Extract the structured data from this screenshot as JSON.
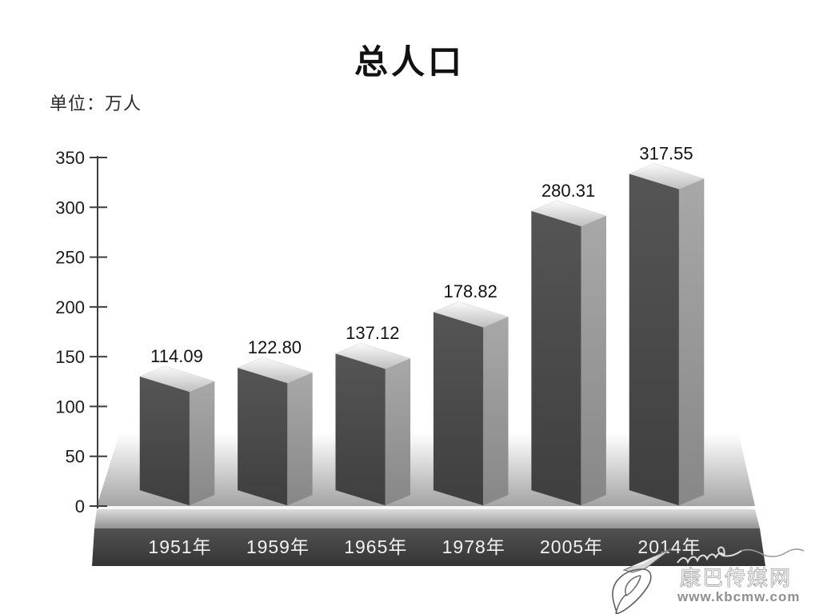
{
  "chart_data": {
    "type": "bar",
    "style": "3d-grayscale",
    "title": "总人口",
    "unit_label": "单位：万人",
    "categories": [
      "1951年",
      "1959年",
      "1965年",
      "1978年",
      "2005年",
      "2014年"
    ],
    "values": [
      114.09,
      122.8,
      137.12,
      178.82,
      280.31,
      317.55
    ],
    "xlabel": "",
    "ylabel": "万人",
    "ylim": [
      0,
      350
    ],
    "y_ticks": [
      0,
      50,
      100,
      150,
      200,
      250,
      300,
      350
    ],
    "grid": false,
    "legend_position": "none"
  },
  "watermark": {
    "site_name": "康巴传媒网",
    "site_url": "www.kbcmw.com"
  },
  "colors": {
    "background": "#ffffff",
    "bar_front": "#4a4a4a",
    "bar_side": "#979797",
    "bar_top": "#dfdfdf",
    "floor_light": "#ffffff",
    "floor_dark": "#a4a4a4",
    "pedestal_dark": "#3f3f3f",
    "baseline_highlight": "#f7f7f7",
    "axis": "#3d3d3d",
    "label_text": "#111111",
    "category_text": "#f2f2f2"
  }
}
